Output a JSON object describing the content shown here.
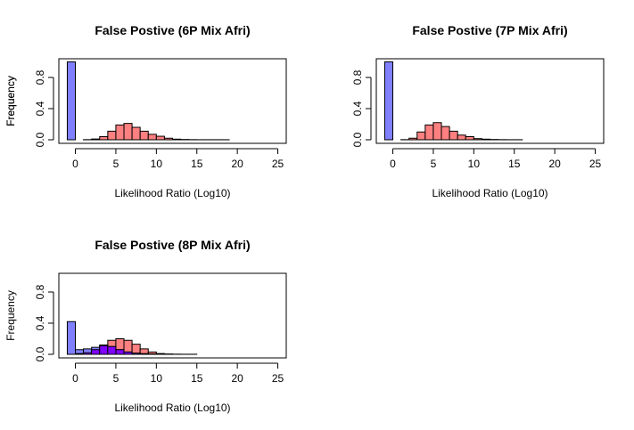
{
  "chart_data": [
    {
      "type": "bar",
      "title": "False Postive (6P Mix Afri)",
      "xlabel": "Likelihood Ratio (Log10)",
      "ylabel": "Frequency",
      "xlim": [
        -1,
        25
      ],
      "ylim": [
        0,
        1
      ],
      "xticks": [
        0,
        5,
        10,
        15,
        20,
        25
      ],
      "yticks": [
        0.0,
        0.4,
        0.8
      ],
      "ytick_labels": [
        "0.0",
        "0.4",
        "0.8"
      ],
      "bin_width": 1,
      "grid": false,
      "series": [
        {
          "color": "#8080ff",
          "bins_start": -1,
          "values": [
            1.0
          ]
        },
        {
          "color": "#ff8080",
          "bins_start": 1,
          "values": [
            0.002,
            0.01,
            0.04,
            0.11,
            0.19,
            0.21,
            0.16,
            0.11,
            0.07,
            0.045,
            0.02,
            0.008,
            0.004,
            0.002,
            0.001,
            0.001,
            0.001,
            0.001,
            0.0,
            0.0,
            0.0,
            0.0,
            0.0,
            0.0
          ]
        }
      ]
    },
    {
      "type": "bar",
      "title": "False Postive (7P Mix Afri)",
      "xlabel": "Likelihood Ratio (Log10)",
      "ylabel": "Frequency",
      "xlim": [
        -1,
        25
      ],
      "ylim": [
        0,
        1
      ],
      "xticks": [
        0,
        5,
        10,
        15,
        20,
        25
      ],
      "yticks": [
        0.0,
        0.4,
        0.8
      ],
      "ytick_labels": [
        "0.0",
        "0.4",
        "0.8"
      ],
      "bin_width": 1,
      "grid": false,
      "series": [
        {
          "color": "#8080ff",
          "bins_start": -1,
          "values": [
            1.0
          ]
        },
        {
          "color": "#ff8080",
          "bins_start": 1,
          "values": [
            0.002,
            0.02,
            0.1,
            0.19,
            0.22,
            0.17,
            0.11,
            0.06,
            0.04,
            0.015,
            0.008,
            0.004,
            0.002,
            0.001,
            0.001,
            0.0,
            0.0,
            0.0,
            0.0,
            0.0,
            0.0,
            0.0,
            0.0,
            0.0
          ]
        }
      ]
    },
    {
      "type": "bar",
      "title": "False Postive (8P Mix Afri)",
      "xlabel": "Likelihood Ratio (Log10)",
      "ylabel": "Frequency",
      "xlim": [
        -1,
        25
      ],
      "ylim": [
        0,
        1
      ],
      "xticks": [
        0,
        5,
        10,
        15,
        20,
        25
      ],
      "yticks": [
        0.0,
        0.4,
        0.8
      ],
      "ytick_labels": [
        "0.0",
        "0.4",
        "0.8"
      ],
      "bin_width": 1,
      "grid": false,
      "series": [
        {
          "color": "#ff8080",
          "bins_start": -1,
          "values": [
            0.0,
            0.01,
            0.02,
            0.06,
            0.11,
            0.18,
            0.2,
            0.18,
            0.13,
            0.07,
            0.03,
            0.01,
            0.004,
            0.002,
            0.001,
            0.001,
            0.0,
            0.0,
            0.0,
            0.0,
            0.0,
            0.0,
            0.0,
            0.0,
            0.0,
            0.0
          ]
        },
        {
          "color": "#8080ff",
          "bins_start": -1,
          "values": [
            0.42,
            0.06,
            0.07,
            0.09,
            0.12,
            0.1,
            0.06,
            0.03,
            0.015,
            0.008,
            0.004,
            0.002,
            0.001,
            0.0,
            0.0,
            0.0,
            0.0,
            0.0,
            0.0,
            0.0,
            0.0,
            0.0,
            0.0,
            0.0,
            0.0,
            0.0
          ]
        },
        {
          "color": "#8000ff",
          "bins_start": -1,
          "values": [
            0.0,
            0.01,
            0.02,
            0.06,
            0.11,
            0.1,
            0.06,
            0.03,
            0.015,
            0.008,
            0.004,
            0.002,
            0.001,
            0.0,
            0.0,
            0.0,
            0.0,
            0.0,
            0.0,
            0.0,
            0.0,
            0.0,
            0.0,
            0.0,
            0.0,
            0.0
          ]
        }
      ]
    }
  ]
}
